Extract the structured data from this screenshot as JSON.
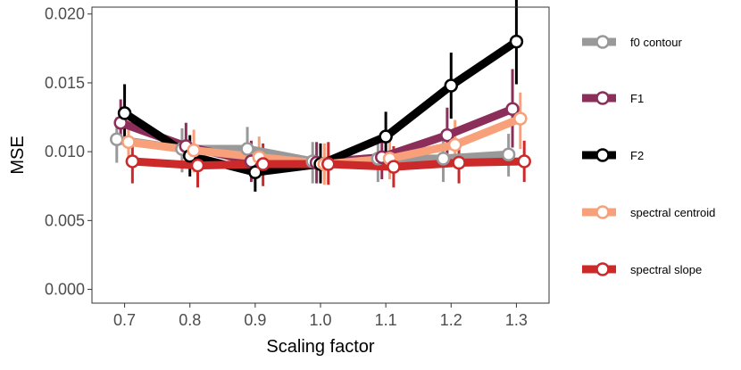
{
  "chart_data": {
    "type": "line",
    "title": "",
    "xlabel": "Scaling factor",
    "ylabel": "MSE",
    "xlim": [
      0.65,
      1.35
    ],
    "ylim": [
      -0.001,
      0.0205
    ],
    "x_ticks": [
      0.7,
      0.8,
      0.9,
      1.0,
      1.1,
      1.2,
      1.3
    ],
    "x_tick_labels": [
      "0.7",
      "0.8",
      "0.9",
      "1.0",
      "1.1",
      "1.2",
      "1.3"
    ],
    "y_ticks": [
      0.0,
      0.005,
      0.01,
      0.015,
      0.02
    ],
    "y_tick_labels": [
      "0.000",
      "0.005",
      "0.010",
      "0.015",
      "0.020"
    ],
    "grid": false,
    "legend_position": "right",
    "series": [
      {
        "name": "f0 contour",
        "color": "#999999",
        "offset": -0.012,
        "x": [
          0.7,
          0.8,
          0.9,
          1.0,
          1.1,
          1.2,
          1.3
        ],
        "values": [
          0.0109,
          0.0102,
          0.0102,
          0.0093,
          0.0095,
          0.0095,
          0.0098
        ],
        "err_low": [
          0.0092,
          0.0085,
          0.0087,
          0.0077,
          0.0078,
          0.0078,
          0.0082
        ],
        "err_high": [
          0.0125,
          0.0117,
          0.0118,
          0.0107,
          0.011,
          0.011,
          0.0113
        ]
      },
      {
        "name": "F1",
        "color": "#8b2f5a",
        "offset": -0.006,
        "x": [
          0.7,
          0.8,
          0.9,
          1.0,
          1.1,
          1.2,
          1.3
        ],
        "values": [
          0.0121,
          0.0104,
          0.0093,
          0.0092,
          0.0096,
          0.0112,
          0.0131
        ],
        "err_low": [
          0.0105,
          0.0088,
          0.0078,
          0.0077,
          0.008,
          0.0094,
          0.0103
        ],
        "err_high": [
          0.0138,
          0.0121,
          0.0108,
          0.0107,
          0.0112,
          0.0132,
          0.016
        ]
      },
      {
        "name": "F2",
        "color": "#000000",
        "offset": 0.0,
        "x": [
          0.7,
          0.8,
          0.9,
          1.0,
          1.1,
          1.2,
          1.3
        ],
        "values": [
          0.0128,
          0.0097,
          0.0085,
          0.0091,
          0.0111,
          0.0148,
          0.018
        ],
        "err_low": [
          0.0108,
          0.0082,
          0.0071,
          0.0077,
          0.0095,
          0.0124,
          0.0149
        ],
        "err_high": [
          0.0149,
          0.0112,
          0.0099,
          0.0106,
          0.0129,
          0.0172,
          0.0211
        ]
      },
      {
        "name": "spectral centroid",
        "color": "#f7a07a",
        "offset": 0.006,
        "x": [
          0.7,
          0.8,
          0.9,
          1.0,
          1.1,
          1.2,
          1.3
        ],
        "values": [
          0.0107,
          0.0101,
          0.0096,
          0.0091,
          0.0095,
          0.0105,
          0.0124
        ],
        "err_low": [
          0.0092,
          0.0085,
          0.0081,
          0.0076,
          0.008,
          0.0088,
          0.0102
        ],
        "err_high": [
          0.0123,
          0.0116,
          0.0111,
          0.0106,
          0.0111,
          0.0123,
          0.0143
        ]
      },
      {
        "name": "spectral slope",
        "color": "#cc2a2a",
        "offset": 0.012,
        "x": [
          0.7,
          0.8,
          0.9,
          1.0,
          1.1,
          1.2,
          1.3
        ],
        "values": [
          0.0093,
          0.009,
          0.0091,
          0.0091,
          0.0089,
          0.0092,
          0.0093
        ],
        "err_low": [
          0.0077,
          0.0074,
          0.0075,
          0.0076,
          0.0074,
          0.0077,
          0.0078
        ],
        "err_high": [
          0.0108,
          0.0105,
          0.0106,
          0.0107,
          0.0104,
          0.0107,
          0.0108
        ]
      }
    ]
  }
}
